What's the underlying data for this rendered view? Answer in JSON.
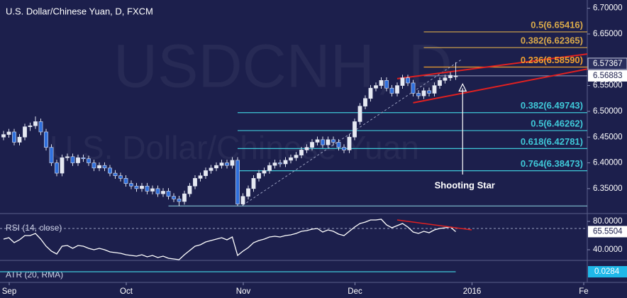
{
  "chart_data": {
    "type": "candlestick",
    "title": "U.S. Dollar/Chinese Yuan, D, FXCM",
    "watermark": [
      "USDCNH, D",
      "U.S. Dollar/Chinese Yuan"
    ],
    "up_color": "#e6e9f2",
    "down_color": "#2f6fdc",
    "candles": [
      [
        6.45,
        6.462,
        6.444,
        6.455
      ],
      [
        6.455,
        6.466,
        6.449,
        6.46
      ],
      [
        6.46,
        6.466,
        6.434,
        6.44
      ],
      [
        6.44,
        6.456,
        6.434,
        6.45
      ],
      [
        6.45,
        6.476,
        6.444,
        6.47
      ],
      [
        6.47,
        6.478,
        6.462,
        6.472
      ],
      [
        6.472,
        6.49,
        6.466,
        6.48
      ],
      [
        6.48,
        6.486,
        6.454,
        6.46
      ],
      [
        6.46,
        6.466,
        6.424,
        6.43
      ],
      [
        6.43,
        6.436,
        6.394,
        6.4
      ],
      [
        6.4,
        6.406,
        6.374,
        6.38
      ],
      [
        6.38,
        6.416,
        6.374,
        6.41
      ],
      [
        6.41,
        6.418,
        6.404,
        6.412
      ],
      [
        6.412,
        6.418,
        6.394,
        6.4
      ],
      [
        6.4,
        6.416,
        6.394,
        6.41
      ],
      [
        6.41,
        6.416,
        6.402,
        6.408
      ],
      [
        6.408,
        6.414,
        6.394,
        6.4
      ],
      [
        6.4,
        6.406,
        6.384,
        6.39
      ],
      [
        6.39,
        6.401,
        6.384,
        6.395
      ],
      [
        6.395,
        6.401,
        6.384,
        6.39
      ],
      [
        6.39,
        6.396,
        6.374,
        6.38
      ],
      [
        6.38,
        6.386,
        6.369,
        6.375
      ],
      [
        6.375,
        6.381,
        6.364,
        6.37
      ],
      [
        6.37,
        6.376,
        6.354,
        6.36
      ],
      [
        6.36,
        6.366,
        6.349,
        6.355
      ],
      [
        6.355,
        6.361,
        6.344,
        6.35
      ],
      [
        6.35,
        6.361,
        6.344,
        6.355
      ],
      [
        6.355,
        6.361,
        6.339,
        6.345
      ],
      [
        6.345,
        6.356,
        6.339,
        6.35
      ],
      [
        6.35,
        6.356,
        6.334,
        6.34
      ],
      [
        6.34,
        6.351,
        6.334,
        6.345
      ],
      [
        6.345,
        6.351,
        6.329,
        6.335
      ],
      [
        6.335,
        6.341,
        6.324,
        6.33
      ],
      [
        6.33,
        6.336,
        6.316,
        6.325
      ],
      [
        6.325,
        6.346,
        6.319,
        6.34
      ],
      [
        6.34,
        6.361,
        6.334,
        6.355
      ],
      [
        6.355,
        6.376,
        6.349,
        6.37
      ],
      [
        6.37,
        6.381,
        6.364,
        6.375
      ],
      [
        6.375,
        6.391,
        6.369,
        6.385
      ],
      [
        6.385,
        6.396,
        6.379,
        6.39
      ],
      [
        6.39,
        6.401,
        6.384,
        6.395
      ],
      [
        6.395,
        6.406,
        6.389,
        6.4
      ],
      [
        6.4,
        6.406,
        6.389,
        6.395
      ],
      [
        6.395,
        6.411,
        6.389,
        6.405
      ],
      [
        6.405,
        6.411,
        6.316,
        6.32
      ],
      [
        6.32,
        6.341,
        6.316,
        6.335
      ],
      [
        6.335,
        6.356,
        6.329,
        6.35
      ],
      [
        6.35,
        6.376,
        6.344,
        6.37
      ],
      [
        6.37,
        6.386,
        6.364,
        6.38
      ],
      [
        6.38,
        6.391,
        6.374,
        6.385
      ],
      [
        6.385,
        6.401,
        6.379,
        6.395
      ],
      [
        6.395,
        6.406,
        6.389,
        6.4
      ],
      [
        6.4,
        6.406,
        6.392,
        6.398
      ],
      [
        6.398,
        6.411,
        6.392,
        6.405
      ],
      [
        6.405,
        6.416,
        6.399,
        6.41
      ],
      [
        6.41,
        6.421,
        6.404,
        6.415
      ],
      [
        6.415,
        6.431,
        6.409,
        6.425
      ],
      [
        6.425,
        6.436,
        6.419,
        6.43
      ],
      [
        6.43,
        6.446,
        6.424,
        6.44
      ],
      [
        6.44,
        6.451,
        6.434,
        6.445
      ],
      [
        6.445,
        6.451,
        6.429,
        6.435
      ],
      [
        6.435,
        6.451,
        6.429,
        6.445
      ],
      [
        6.445,
        6.451,
        6.434,
        6.44
      ],
      [
        6.44,
        6.446,
        6.424,
        6.43
      ],
      [
        6.43,
        6.436,
        6.419,
        6.425
      ],
      [
        6.425,
        6.456,
        6.419,
        6.45
      ],
      [
        6.45,
        6.486,
        6.444,
        6.48
      ],
      [
        6.48,
        6.516,
        6.474,
        6.51
      ],
      [
        6.51,
        6.531,
        6.504,
        6.525
      ],
      [
        6.525,
        6.551,
        6.519,
        6.545
      ],
      [
        6.545,
        6.556,
        6.539,
        6.55
      ],
      [
        6.55,
        6.566,
        6.544,
        6.56
      ],
      [
        6.56,
        6.566,
        6.539,
        6.545
      ],
      [
        6.545,
        6.551,
        6.529,
        6.535
      ],
      [
        6.535,
        6.556,
        6.529,
        6.55
      ],
      [
        6.55,
        6.571,
        6.544,
        6.565
      ],
      [
        6.565,
        6.571,
        6.549,
        6.555
      ],
      [
        6.555,
        6.561,
        6.529,
        6.535
      ],
      [
        6.535,
        6.541,
        6.524,
        6.53
      ],
      [
        6.53,
        6.546,
        6.524,
        6.54
      ],
      [
        6.54,
        6.546,
        6.529,
        6.535
      ],
      [
        6.535,
        6.556,
        6.529,
        6.55
      ],
      [
        6.55,
        6.566,
        6.544,
        6.56
      ],
      [
        6.56,
        6.571,
        6.554,
        6.565
      ],
      [
        6.565,
        6.576,
        6.559,
        6.57
      ],
      [
        6.567,
        6.595,
        6.561,
        6.56883
      ]
    ],
    "ylim": [
      6.303,
      6.716
    ],
    "yticks": [
      {
        "value": 6.35,
        "label": "6.35000"
      },
      {
        "value": 6.4,
        "label": "6.40000"
      },
      {
        "value": 6.45,
        "label": "6.45000"
      },
      {
        "value": 6.5,
        "label": "6.50000"
      },
      {
        "value": 6.55,
        "label": "6.55000"
      },
      {
        "value": 6.65,
        "label": "6.65000"
      },
      {
        "value": 6.7,
        "label": "6.70000"
      }
    ],
    "x_labels": [
      "Sep",
      "Oct",
      "Nov",
      "Dec",
      "2016",
      "Fe"
    ],
    "x_label_days": [
      0,
      22,
      44,
      65,
      87,
      108
    ],
    "levels": [
      {
        "label": "0.5(6.65416)",
        "value": 6.65416,
        "color": "#d9a94a",
        "start": 79
      },
      {
        "label": "0.382(6.62365)",
        "value": 6.62365,
        "color": "#d9a94a",
        "start": 79
      },
      {
        "label": "0.236(6.58590)",
        "value": 6.5859,
        "color": "#f0a030",
        "start": 79
      },
      {
        "label": "0.382(6.49743)",
        "value": 6.49743,
        "color": "#3fc8d8",
        "start": 44
      },
      {
        "label": "0.5(6.46262)",
        "value": 6.46262,
        "color": "#3fc8d8",
        "start": 44
      },
      {
        "label": "0.618(6.42781)",
        "value": 6.42781,
        "color": "#3fc8d8",
        "start": 44
      },
      {
        "label": "0.764(6.38473)",
        "value": 6.38473,
        "color": "#3fc8d8",
        "start": 44
      }
    ],
    "lines": [
      {
        "value": 6.3165,
        "start": 31,
        "color": "#8fd8e4"
      },
      {
        "value": 6.56883,
        "start": 79,
        "color": "#9aa0c0"
      }
    ],
    "price_label": 6.57367,
    "trendlines": [
      {
        "from": [
          45,
          6.318
        ],
        "to": [
          86,
          6.6
        ],
        "color": "#9aa0c0",
        "dash": true
      },
      {
        "from": [
          74,
          6.5634
        ],
        "to": [
          110,
          6.6116
        ],
        "color": "#e02020",
        "dash": false
      },
      {
        "from": [
          77,
          6.5165
        ],
        "to": [
          110,
          6.5826
        ],
        "color": "#e02020",
        "dash": false
      }
    ],
    "annotation": {
      "text": "Shooting Star",
      "day": 86.3,
      "value": 6.553
    },
    "rsi": {
      "title": "RSI (14, close)",
      "ylim": [
        27,
        87
      ],
      "yticks": [
        {
          "value": 80,
          "label": "80.0000"
        },
        {
          "value": 40,
          "label": "40.0000"
        }
      ],
      "levels": [
        70
      ],
      "values": [
        55,
        57,
        50,
        54,
        60,
        60,
        63,
        55,
        45,
        38,
        34,
        45,
        46,
        42,
        46,
        45,
        42,
        40,
        42,
        40,
        37,
        36,
        35,
        33,
        32,
        31,
        33,
        30,
        32,
        29,
        31,
        28,
        27,
        26,
        33,
        39,
        45,
        47,
        51,
        53,
        55,
        57,
        54,
        58,
        32,
        38,
        43,
        50,
        53,
        55,
        58,
        59,
        58,
        60,
        61,
        63,
        66,
        67,
        69,
        70,
        65,
        68,
        66,
        62,
        60,
        66,
        72,
        77,
        79,
        82,
        82,
        83,
        75,
        71,
        74,
        77,
        72,
        65,
        63,
        66,
        64,
        68,
        70,
        71,
        72,
        65.5504
      ],
      "trendline": {
        "from": [
          74,
          82
        ],
        "to": [
          88,
          68
        ],
        "color": "#e02020"
      }
    },
    "atr": {
      "title": "ATR (20, RMA)",
      "value": 0.0284
    }
  }
}
